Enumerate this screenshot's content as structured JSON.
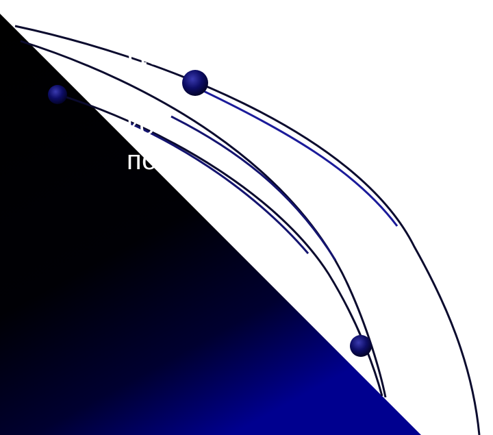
{
  "slide": {
    "text_lines": [
      "Це зво",
      "",
      "ко",
      "попу"
    ]
  },
  "colors": {
    "gradient_dark": "#000000",
    "gradient_blue": "#00008b",
    "curve_dark": "#0b0b2e",
    "curve_blue": "#141470",
    "node_fill": "#0a0a5a",
    "text": "#ffffff"
  },
  "icons": [
    "decorative-orbit-node",
    "decorative-orbit-node",
    "decorative-orbit-node"
  ]
}
